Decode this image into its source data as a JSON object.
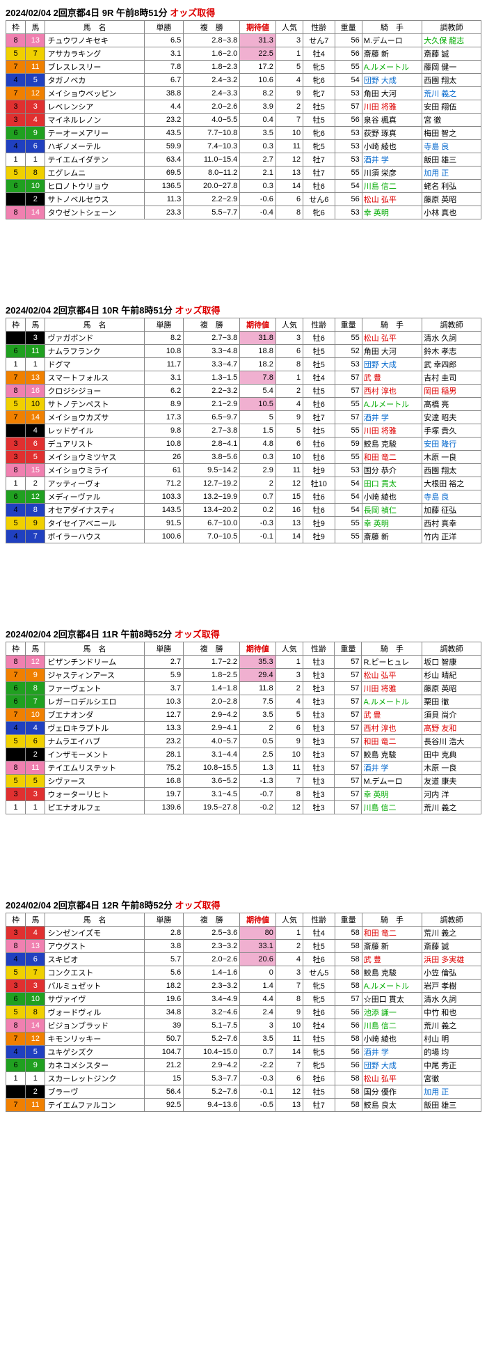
{
  "headers": [
    "枠",
    "馬",
    "馬　名",
    "単勝",
    "複　勝",
    "期待値",
    "人気",
    "性齢",
    "重量",
    "騎　手",
    "調教師"
  ],
  "races": [
    {
      "title_pre": "2024/02/04  2回京都4日   9R   午前8時51分 ",
      "title_red": "オッズ取得",
      "rows": [
        {
          "w": 8,
          "u": 13,
          "n": "チュウワノキセキ",
          "t": "6.5",
          "f": "2.8−3.8",
          "k": "31.3",
          "kh": 1,
          "p": 3,
          "s": "せん7",
          "wt": 56,
          "j": "M.デムーロ",
          "jc": "",
          "c": "大久保 龍志",
          "cc": "jgreen"
        },
        {
          "w": 5,
          "u": 7,
          "n": "アサカラキング",
          "t": "3.1",
          "f": "1.6−2.0",
          "k": "22.5",
          "kh": 1,
          "p": 1,
          "s": "牡4",
          "wt": 56,
          "j": "斎藤 新",
          "jc": "",
          "c": "斎藤 誠",
          "cc": ""
        },
        {
          "w": 7,
          "u": 11,
          "n": "ブレスレスリー",
          "t": "7.8",
          "f": "1.8−2.3",
          "k": "17.2",
          "kh": 0,
          "p": 5,
          "s": "牝5",
          "wt": 55,
          "j": "A.ルメートル",
          "jc": "jgreen",
          "c": "藤岡 健一",
          "cc": ""
        },
        {
          "w": 4,
          "u": 5,
          "n": "タガノベカ",
          "t": "6.7",
          "f": "2.4−3.2",
          "k": "10.6",
          "kh": 0,
          "p": 4,
          "s": "牝6",
          "wt": 54,
          "j": "団野 大成",
          "jc": "jblue",
          "c": "西園 翔太",
          "cc": ""
        },
        {
          "w": 7,
          "u": 12,
          "n": "メイショウベッピン",
          "t": "38.8",
          "f": "2.4−3.3",
          "k": "8.2",
          "kh": 0,
          "p": 9,
          "s": "牝7",
          "wt": 53,
          "j": "角田 大河",
          "jc": "",
          "c": "荒川 義之",
          "cc": "jblue"
        },
        {
          "w": 3,
          "u": 3,
          "n": "レベレンシア",
          "t": "4.4",
          "f": "2.0−2.6",
          "k": "3.9",
          "kh": 0,
          "p": 2,
          "s": "牡5",
          "wt": 57,
          "j": "川田 将雅",
          "jc": "jred",
          "c": "安田 翔伍",
          "cc": ""
        },
        {
          "w": 3,
          "u": 4,
          "n": "マイネルレノン",
          "t": "23.2",
          "f": "4.0−5.5",
          "k": "0.4",
          "kh": 0,
          "p": 7,
          "s": "牡5",
          "wt": 56,
          "j": "泉谷 楓真",
          "jc": "",
          "c": "宮 徹",
          "cc": ""
        },
        {
          "w": 6,
          "u": 9,
          "n": "テーオーメアリー",
          "t": "43.5",
          "f": "7.7−10.8",
          "k": "3.5",
          "kh": 0,
          "p": 10,
          "s": "牝6",
          "wt": 53,
          "j": "荻野 琢真",
          "jc": "",
          "c": "梅田 智之",
          "cc": ""
        },
        {
          "w": 4,
          "u": 6,
          "n": "ハギノメーテル",
          "t": "59.9",
          "f": "7.4−10.3",
          "k": "0.3",
          "kh": 0,
          "p": 11,
          "s": "牝5",
          "wt": 53,
          "j": "小崎 綾也",
          "jc": "",
          "c": "寺島 良",
          "cc": "jblue"
        },
        {
          "w": 1,
          "u": 1,
          "n": "テイエムイダテン",
          "t": "63.4",
          "f": "11.0−15.4",
          "k": "2.7",
          "kh": 0,
          "p": 12,
          "s": "牡7",
          "wt": 53,
          "j": "酒井 学",
          "jc": "jblue",
          "c": "飯田 雄三",
          "cc": ""
        },
        {
          "w": 5,
          "u": 8,
          "n": "エグレムニ",
          "t": "69.5",
          "f": "8.0−11.2",
          "k": "2.1",
          "kh": 0,
          "p": 13,
          "s": "牡7",
          "wt": 55,
          "j": "川須 栄彦",
          "jc": "",
          "c": "加用 正",
          "cc": "jblue"
        },
        {
          "w": 6,
          "u": 10,
          "n": "ヒロノトウリョウ",
          "t": "136.5",
          "f": "20.0−27.8",
          "k": "0.3",
          "kh": 0,
          "p": 14,
          "s": "牡6",
          "wt": 54,
          "j": "川島 信二",
          "jc": "jgreen",
          "c": "蛯名 利弘",
          "cc": ""
        },
        {
          "w": 2,
          "u": 2,
          "n": "サトノベルセウス",
          "t": "11.3",
          "f": "2.2−2.9",
          "k": "-0.6",
          "kh": 0,
          "p": 6,
          "s": "せん6",
          "wt": 56,
          "j": "松山 弘平",
          "jc": "jred",
          "c": "藤原 英昭",
          "cc": ""
        },
        {
          "w": 8,
          "u": 14,
          "n": "タウゼントシェーン",
          "t": "23.3",
          "f": "5.5−7.7",
          "k": "-0.4",
          "kh": 0,
          "p": 8,
          "s": "牝6",
          "wt": 53,
          "j": "幸 英明",
          "jc": "jgreen",
          "c": "小林 真也",
          "cc": ""
        }
      ]
    },
    {
      "title_pre": "2024/02/04  2回京都4日   10R   午前8時51分 ",
      "title_red": "オッズ取得",
      "rows": [
        {
          "w": 2,
          "u": 3,
          "n": "ヴァガボンド",
          "t": "8.2",
          "f": "2.7−3.8",
          "k": "31.8",
          "kh": 1,
          "p": 3,
          "s": "牡6",
          "wt": 55,
          "j": "松山 弘平",
          "jc": "jred",
          "c": "清水 久詞",
          "cc": ""
        },
        {
          "w": 6,
          "u": 11,
          "n": "ナムラフランク",
          "t": "10.8",
          "f": "3.3−4.8",
          "k": "18.8",
          "kh": 0,
          "p": 6,
          "s": "牡5",
          "wt": 52,
          "j": "角田 大河",
          "jc": "",
          "c": "鈴木 孝志",
          "cc": ""
        },
        {
          "w": 1,
          "u": 1,
          "n": "ドグマ",
          "t": "11.7",
          "f": "3.3−4.7",
          "k": "18.2",
          "kh": 0,
          "p": 8,
          "s": "牡5",
          "wt": 53,
          "j": "団野 大成",
          "jc": "jblue",
          "c": "武 幸四郎",
          "cc": ""
        },
        {
          "w": 7,
          "u": 13,
          "n": "スマートフォルス",
          "t": "3.1",
          "f": "1.3−1.5",
          "k": "7.8",
          "kh": 1,
          "p": 1,
          "s": "牡4",
          "wt": 57,
          "j": "武 豊",
          "jc": "jred",
          "c": "吉村 圭司",
          "cc": ""
        },
        {
          "w": 8,
          "u": 16,
          "n": "クロジシジョー",
          "t": "6.2",
          "f": "2.2−3.2",
          "k": "5.4",
          "kh": 0,
          "p": 2,
          "s": "牡5",
          "wt": 57,
          "j": "西村 淳也",
          "jc": "jred",
          "c": "岡田 稲男",
          "cc": "jred"
        },
        {
          "w": 5,
          "u": 10,
          "n": "サトノテンペスト",
          "t": "8.9",
          "f": "2.1−2.9",
          "k": "10.5",
          "kh": 1,
          "p": 4,
          "s": "牡6",
          "wt": 55,
          "j": "A.ルメートル",
          "jc": "jgreen",
          "c": "高橋 亮",
          "cc": ""
        },
        {
          "w": 7,
          "u": 14,
          "n": "メイショウカズサ",
          "t": "17.3",
          "f": "6.5−9.7",
          "k": "5",
          "kh": 0,
          "p": 9,
          "s": "牡7",
          "wt": 57,
          "j": "酒井 学",
          "jc": "jblue",
          "c": "安達 昭夫",
          "cc": ""
        },
        {
          "w": 2,
          "u": 4,
          "n": "レッドゲイル",
          "t": "9.8",
          "f": "2.7−3.8",
          "k": "1.5",
          "kh": 0,
          "p": 5,
          "s": "牡5",
          "wt": 55,
          "j": "川田 将雅",
          "jc": "jred",
          "c": "手塚 貴久",
          "cc": ""
        },
        {
          "w": 3,
          "u": 6,
          "n": "デュアリスト",
          "t": "10.8",
          "f": "2.8−4.1",
          "k": "4.8",
          "kh": 0,
          "p": 6,
          "s": "牡6",
          "wt": 59,
          "j": "鮫島 克駿",
          "jc": "",
          "c": "安田 隆行",
          "cc": "jblue"
        },
        {
          "w": 3,
          "u": 5,
          "n": "メイショウミツヤス",
          "t": "26",
          "f": "3.8−5.6",
          "k": "0.3",
          "kh": 0,
          "p": 10,
          "s": "牡6",
          "wt": 55,
          "j": "和田 竜二",
          "jc": "jred",
          "c": "木原 一良",
          "cc": ""
        },
        {
          "w": 8,
          "u": 15,
          "n": "メイショウミライ",
          "t": "61",
          "f": "9.5−14.2",
          "k": "2.9",
          "kh": 0,
          "p": 11,
          "s": "牡9",
          "wt": 53,
          "j": "国分 恭介",
          "jc": "",
          "c": "西園 翔太",
          "cc": ""
        },
        {
          "w": 1,
          "u": 2,
          "n": "アッティーヴォ",
          "t": "71.2",
          "f": "12.7−19.2",
          "k": "2",
          "kh": 0,
          "p": 12,
          "s": "牡10",
          "wt": 54,
          "j": "田口 貫太",
          "jc": "jgreen",
          "c": "大根田 裕之",
          "cc": ""
        },
        {
          "w": 6,
          "u": 12,
          "n": "メディーヴァル",
          "t": "103.3",
          "f": "13.2−19.9",
          "k": "0.7",
          "kh": 0,
          "p": 15,
          "s": "牡6",
          "wt": 54,
          "j": "小崎 綾也",
          "jc": "",
          "c": "寺島 良",
          "cc": "jblue"
        },
        {
          "w": 4,
          "u": 8,
          "n": "オセアダイナスティ",
          "t": "143.5",
          "f": "13.4−20.2",
          "k": "0.2",
          "kh": 0,
          "p": 16,
          "s": "牡6",
          "wt": 54,
          "j": "長岡 禎仁",
          "jc": "jgreen",
          "c": "加藤 征弘",
          "cc": ""
        },
        {
          "w": 5,
          "u": 9,
          "n": "タイセイアベニール",
          "t": "91.5",
          "f": "6.7−10.0",
          "k": "-0.3",
          "kh": 0,
          "p": 13,
          "s": "牡9",
          "wt": 55,
          "j": "幸 英明",
          "jc": "jgreen",
          "c": "西村 真幸",
          "cc": ""
        },
        {
          "w": 4,
          "u": 7,
          "n": "ボイラーハウス",
          "t": "100.6",
          "f": "7.0−10.5",
          "k": "-0.1",
          "kh": 0,
          "p": 14,
          "s": "牡9",
          "wt": 55,
          "j": "斎藤 新",
          "jc": "",
          "c": "竹内 正洋",
          "cc": ""
        }
      ]
    },
    {
      "title_pre": "2024/02/04  2回京都4日   11R   午前8時52分 ",
      "title_red": "オッズ取得",
      "rows": [
        {
          "w": 8,
          "u": 12,
          "n": "ビザンチンドリーム",
          "t": "2.7",
          "f": "1.7−2.2",
          "k": "35.3",
          "kh": 1,
          "p": 1,
          "s": "牡3",
          "wt": 57,
          "j": "R.ピーヒュレ",
          "jc": "",
          "c": "坂口 智康",
          "cc": ""
        },
        {
          "w": 7,
          "u": 9,
          "n": "ジャスティンアース",
          "t": "5.9",
          "f": "1.8−2.5",
          "k": "29.4",
          "kh": 1,
          "p": 3,
          "s": "牡3",
          "wt": 57,
          "j": "松山 弘平",
          "jc": "jred",
          "c": "杉山 晴紀",
          "cc": ""
        },
        {
          "w": 6,
          "u": 8,
          "n": "ファーヴェント",
          "t": "3.7",
          "f": "1.4−1.8",
          "k": "11.8",
          "kh": 0,
          "p": 2,
          "s": "牡3",
          "wt": 57,
          "j": "川田 将雅",
          "jc": "jred",
          "c": "藤原 英昭",
          "cc": ""
        },
        {
          "w": 6,
          "u": 7,
          "n": "レガーロデルシエロ",
          "t": "10.3",
          "f": "2.0−2.8",
          "k": "7.5",
          "kh": 0,
          "p": 4,
          "s": "牡3",
          "wt": 57,
          "j": "A.ルメートル",
          "jc": "jgreen",
          "c": "栗田 徹",
          "cc": ""
        },
        {
          "w": 7,
          "u": 10,
          "n": "ブエナオンダ",
          "t": "12.7",
          "f": "2.9−4.2",
          "k": "3.5",
          "kh": 0,
          "p": 5,
          "s": "牡3",
          "wt": 57,
          "j": "武 豊",
          "jc": "jred",
          "c": "須貝 尚介",
          "cc": ""
        },
        {
          "w": 4,
          "u": 4,
          "n": "ヴェロキラプトル",
          "t": "13.3",
          "f": "2.9−4.1",
          "k": "2",
          "kh": 0,
          "p": 6,
          "s": "牡3",
          "wt": 57,
          "j": "西村 淳也",
          "jc": "jred",
          "c": "高野 友和",
          "cc": "jred"
        },
        {
          "w": 5,
          "u": 6,
          "n": "ナムラエイハブ",
          "t": "23.2",
          "f": "4.0−5.7",
          "k": "0.5",
          "kh": 0,
          "p": 9,
          "s": "牡3",
          "wt": 57,
          "j": "和田 竜二",
          "jc": "jred",
          "c": "長谷川 浩大",
          "cc": ""
        },
        {
          "w": 2,
          "u": 2,
          "n": "インザモーメント",
          "t": "28.1",
          "f": "3.1−4.4",
          "k": "2.5",
          "kh": 0,
          "p": 10,
          "s": "牡3",
          "wt": 57,
          "j": "鮫島 克駿",
          "jc": "",
          "c": "田中 克典",
          "cc": ""
        },
        {
          "w": 8,
          "u": 11,
          "n": "テイエムリステット",
          "t": "75.2",
          "f": "10.8−15.5",
          "k": "1.3",
          "kh": 0,
          "p": 11,
          "s": "牡3",
          "wt": 57,
          "j": "酒井 学",
          "jc": "jblue",
          "c": "木原 一良",
          "cc": ""
        },
        {
          "w": 5,
          "u": 5,
          "n": "シヴァース",
          "t": "16.8",
          "f": "3.6−5.2",
          "k": "-1.3",
          "kh": 0,
          "p": 7,
          "s": "牡3",
          "wt": 57,
          "j": "M.デムーロ",
          "jc": "",
          "c": "友道 康夫",
          "cc": ""
        },
        {
          "w": 3,
          "u": 3,
          "n": "ウォーターリヒト",
          "t": "19.7",
          "f": "3.1−4.5",
          "k": "-0.7",
          "kh": 0,
          "p": 8,
          "s": "牡3",
          "wt": 57,
          "j": "幸 英明",
          "jc": "jgreen",
          "c": "河内 洋",
          "cc": ""
        },
        {
          "w": 1,
          "u": 1,
          "n": "ピエナオルフェ",
          "t": "139.6",
          "f": "19.5−27.8",
          "k": "-0.2",
          "kh": 0,
          "p": 12,
          "s": "牡3",
          "wt": 57,
          "j": "川島 信二",
          "jc": "jgreen",
          "c": "荒川 義之",
          "cc": ""
        }
      ]
    },
    {
      "title_pre": "2024/02/04  2回京都4日   12R   午前8時52分 ",
      "title_red": "オッズ取得",
      "rows": [
        {
          "w": 3,
          "u": 4,
          "n": "シンゼンイズモ",
          "t": "2.8",
          "f": "2.5−3.6",
          "k": "80",
          "kh": 1,
          "p": 1,
          "s": "牡4",
          "wt": 58,
          "j": "和田 竜二",
          "jc": "jred",
          "c": "荒川 義之",
          "cc": ""
        },
        {
          "w": 8,
          "u": 13,
          "n": "アウグスト",
          "t": "3.8",
          "f": "2.3−3.2",
          "k": "33.1",
          "kh": 1,
          "p": 2,
          "s": "牡5",
          "wt": 58,
          "j": "斎藤 新",
          "jc": "",
          "c": "斎藤 誠",
          "cc": ""
        },
        {
          "w": 4,
          "u": 6,
          "n": "スキピオ",
          "t": "5.7",
          "f": "2.0−2.6",
          "k": "20.6",
          "kh": 1,
          "p": 4,
          "s": "牡6",
          "wt": 58,
          "j": "武 豊",
          "jc": "jred",
          "c": "浜田 多実雄",
          "cc": "jred"
        },
        {
          "w": 5,
          "u": 7,
          "n": "コンクエスト",
          "t": "5.6",
          "f": "1.4−1.6",
          "k": "0",
          "kh": 0,
          "p": 3,
          "s": "せん5",
          "wt": 58,
          "j": "鮫島 克駿",
          "jc": "",
          "c": "小笠 倫弘",
          "cc": ""
        },
        {
          "w": 3,
          "u": 3,
          "n": "バルミュゼット",
          "t": "18.2",
          "f": "2.3−3.2",
          "k": "1.4",
          "kh": 0,
          "p": 7,
          "s": "牝5",
          "wt": 58,
          "j": "A.ルメートル",
          "jc": "jgreen",
          "c": "岩戸 孝樹",
          "cc": ""
        },
        {
          "w": 6,
          "u": 10,
          "n": "サヴァイヴ",
          "t": "19.6",
          "f": "3.4−4.9",
          "k": "4.4",
          "kh": 0,
          "p": 8,
          "s": "牝5",
          "wt": 57,
          "j": "☆田口 貫太",
          "jc": "",
          "c": "清水 久詞",
          "cc": ""
        },
        {
          "w": 5,
          "u": 8,
          "n": "ヴォードヴィル",
          "t": "34.8",
          "f": "3.2−4.6",
          "k": "2.4",
          "kh": 0,
          "p": 9,
          "s": "牡6",
          "wt": 56,
          "j": "池添 謙一",
          "jc": "jgreen",
          "c": "中竹 和也",
          "cc": ""
        },
        {
          "w": 8,
          "u": 14,
          "n": "ビジョンブラッド",
          "t": "39",
          "f": "5.1−7.5",
          "k": "3",
          "kh": 0,
          "p": 10,
          "s": "牡4",
          "wt": 56,
          "j": "川島 信二",
          "jc": "jgreen",
          "c": "荒川 義之",
          "cc": ""
        },
        {
          "w": 7,
          "u": 12,
          "n": "キモンリッキー",
          "t": "50.7",
          "f": "5.2−7.6",
          "k": "3.5",
          "kh": 0,
          "p": 11,
          "s": "牡5",
          "wt": 58,
          "j": "小崎 綾也",
          "jc": "",
          "c": "村山 明",
          "cc": ""
        },
        {
          "w": 4,
          "u": 5,
          "n": "ユキゲシズク",
          "t": "104.7",
          "f": "10.4−15.0",
          "k": "0.7",
          "kh": 0,
          "p": 14,
          "s": "牝5",
          "wt": 56,
          "j": "酒井 学",
          "jc": "jblue",
          "c": "的場 均",
          "cc": ""
        },
        {
          "w": 6,
          "u": 9,
          "n": "カネコメシスター",
          "t": "21.2",
          "f": "2.9−4.2",
          "k": "-2.2",
          "kh": 0,
          "p": 7,
          "s": "牝5",
          "wt": 56,
          "j": "団野 大成",
          "jc": "jblue",
          "c": "中尾 秀正",
          "cc": ""
        },
        {
          "w": 1,
          "u": 1,
          "n": "スカーレットジンク",
          "t": "15",
          "f": "5.3−7.7",
          "k": "-0.3",
          "kh": 0,
          "p": 6,
          "s": "牡6",
          "wt": 58,
          "j": "松山 弘平",
          "jc": "jred",
          "c": "宮徹",
          "cc": ""
        },
        {
          "w": 2,
          "u": 2,
          "n": "ブラーヴ",
          "t": "56.4",
          "f": "5.2−7.6",
          "k": "-0.1",
          "kh": 0,
          "p": 12,
          "s": "牡5",
          "wt": 58,
          "j": "国分 優作",
          "jc": "",
          "c": "加用 正",
          "cc": "jblue"
        },
        {
          "w": 7,
          "u": 11,
          "n": "テイエムファルコン",
          "t": "92.5",
          "f": "9.4−13.6",
          "k": "-0.5",
          "kh": 0,
          "p": 13,
          "s": "牡7",
          "wt": 58,
          "j": "鮫島 良太",
          "jc": "",
          "c": "飯田 雄三",
          "cc": ""
        }
      ]
    }
  ]
}
